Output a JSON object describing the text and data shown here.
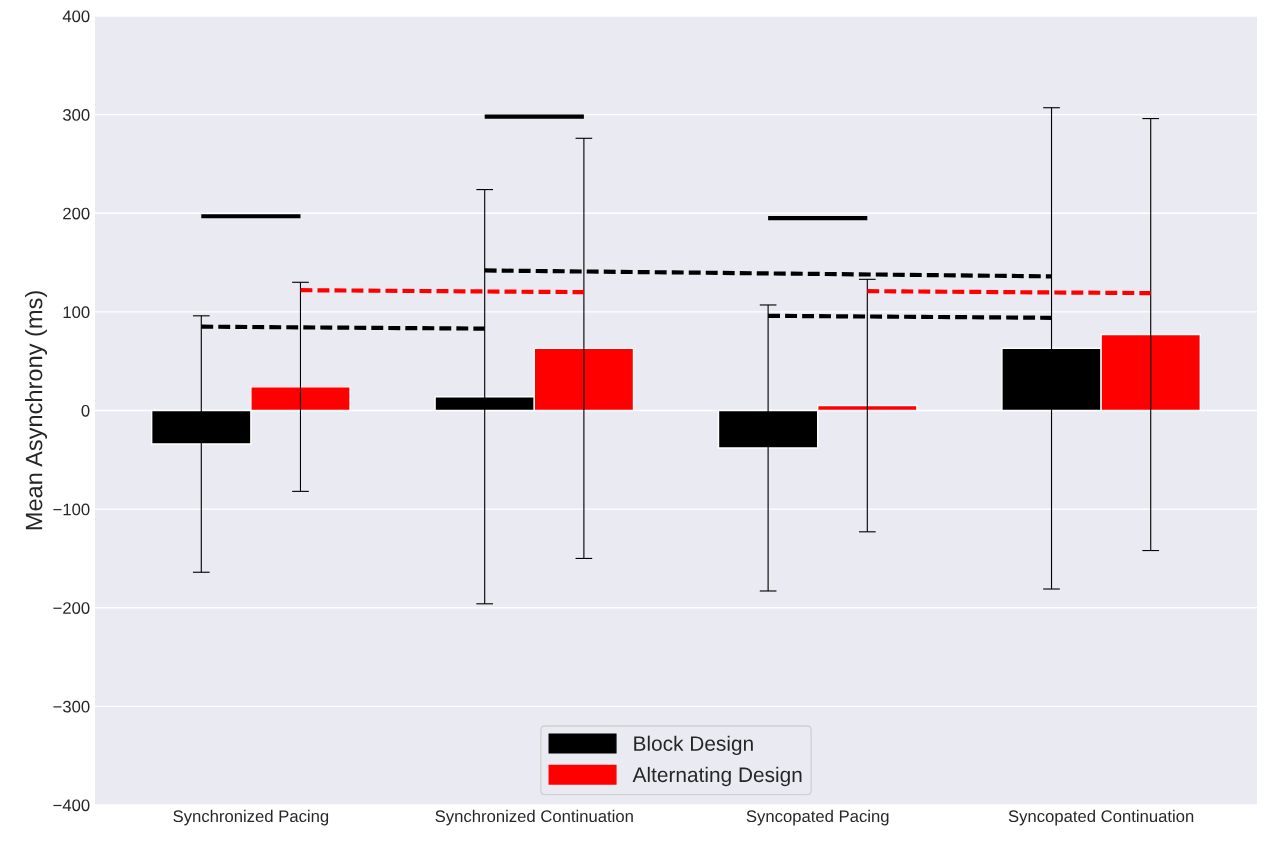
{
  "chart_data": {
    "type": "bar",
    "ylabel": "Mean Asynchrony (ms)",
    "categories": [
      "Synchronized Pacing",
      "Synchronized Continuation",
      "Syncopated Pacing",
      "Syncopated Continuation"
    ],
    "series": [
      {
        "name": "Block Design",
        "color": "#000000",
        "values": [
          -34,
          14,
          -38,
          63
        ],
        "errors": [
          130,
          210,
          145,
          244
        ]
      },
      {
        "name": "Alternating Design",
        "color": "#ff0000",
        "values": [
          24,
          63,
          5,
          77
        ],
        "errors": [
          106,
          213,
          128,
          219
        ]
      }
    ],
    "ylim": [
      -400,
      400
    ],
    "yticks": [
      -400,
      -300,
      -200,
      -100,
      0,
      100,
      200,
      300,
      400
    ],
    "grid": "y",
    "legend": "bottom"
  }
}
